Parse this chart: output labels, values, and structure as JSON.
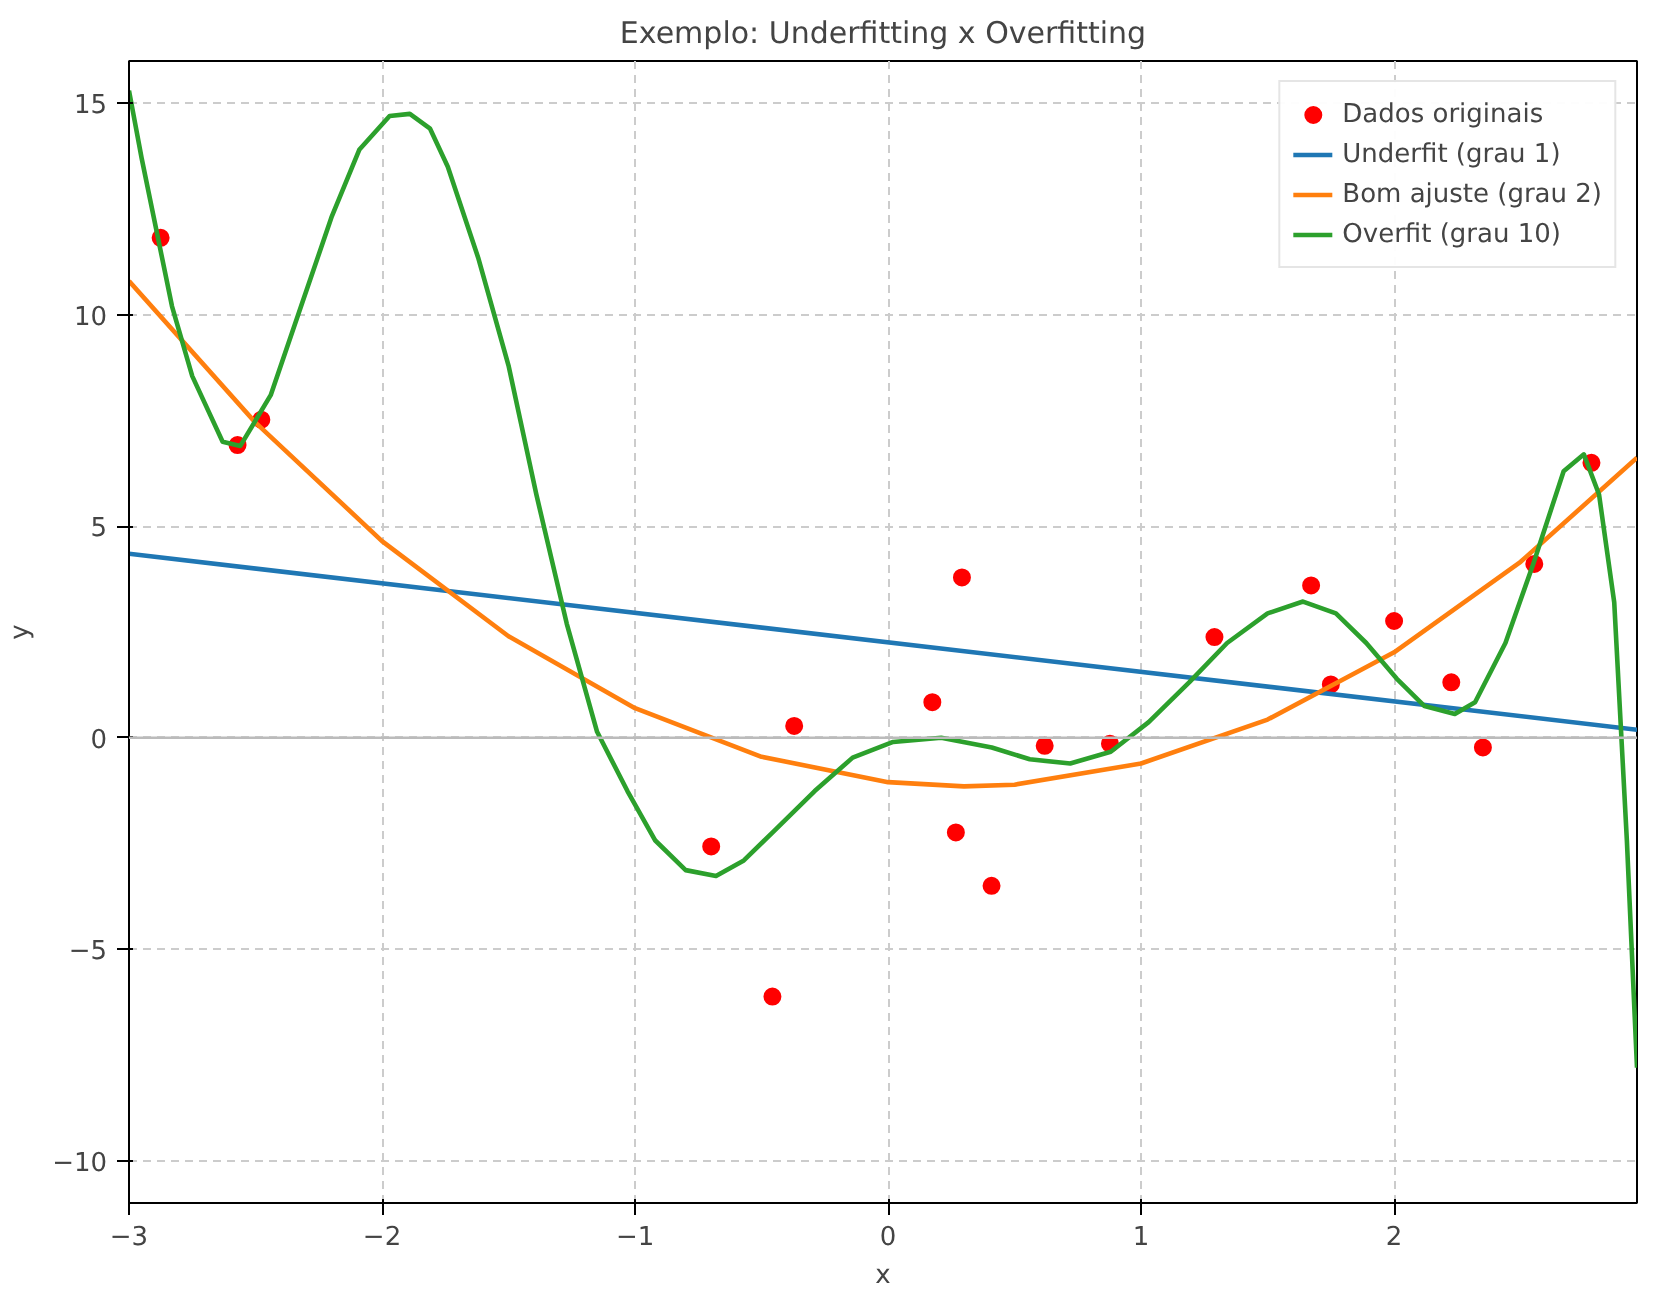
{
  "chart_data": {
    "type": "line",
    "title": "Exemplo: Underfitting x Overfitting",
    "xlabel": "x",
    "ylabel": "y",
    "xlim": [
      -3,
      2.96
    ],
    "ylim": [
      -11,
      16
    ],
    "xticks": [
      -3,
      -2,
      -1,
      0,
      1,
      2
    ],
    "yticks": [
      -10,
      -5,
      0,
      5,
      10,
      15
    ],
    "grid": true,
    "legend": "top right",
    "ref_lines": [
      {
        "axis": "y",
        "value": 0,
        "label": null,
        "color": "#bbbbbb"
      }
    ],
    "series": [
      {
        "name": "Dados originais",
        "type": "scatter",
        "marker": "circle",
        "color": "#ff0000",
        "x": [
          -2.875,
          -2.571,
          -2.477,
          -0.699,
          -0.457,
          -0.371,
          0.175,
          0.268,
          0.292,
          0.409,
          0.619,
          0.877,
          1.29,
          1.672,
          1.75,
          2.0,
          2.226,
          2.351,
          2.554,
          2.78
        ],
        "values": [
          11.82,
          6.92,
          7.52,
          -2.57,
          -6.12,
          0.28,
          0.84,
          -2.24,
          3.79,
          -3.5,
          -0.19,
          -0.14,
          2.38,
          3.6,
          1.26,
          2.76,
          1.31,
          -0.23,
          4.11,
          6.5
        ]
      },
      {
        "name": "Underfit (grau 1)",
        "color": "#1f77b4",
        "x": [
          -3,
          2.96
        ],
        "values": [
          4.35,
          0.19
        ]
      },
      {
        "name": "Bom ajuste (grau 2)",
        "color": "#ff7f0e",
        "x": [
          -3,
          -2.5,
          -2,
          -1.5,
          -1,
          -0.5,
          0,
          0.3,
          0.5,
          1,
          1.5,
          2,
          2.5,
          2.96
        ],
        "values": [
          10.8,
          7.45,
          4.65,
          2.4,
          0.7,
          -0.45,
          -1.05,
          -1.15,
          -1.11,
          -0.61,
          0.43,
          2.02,
          4.16,
          6.62
        ]
      },
      {
        "name": "Overfit (grau 10)",
        "color": "#2ca02c",
        "x": [
          -3,
          -2.95,
          -2.83,
          -2.75,
          -2.63,
          -2.56,
          -2.44,
          -2.32,
          -2.2,
          -2.09,
          -1.97,
          -1.89,
          -1.81,
          -1.74,
          -1.62,
          -1.5,
          -1.39,
          -1.27,
          -1.15,
          -1.03,
          -0.92,
          -0.8,
          -0.68,
          -0.57,
          -0.45,
          -0.29,
          -0.14,
          0.02,
          0.21,
          0.41,
          0.56,
          0.72,
          0.88,
          1.03,
          1.19,
          1.34,
          1.5,
          1.64,
          1.77,
          1.89,
          2.01,
          2.12,
          2.24,
          2.32,
          2.44,
          2.55,
          2.67,
          2.75,
          2.81,
          2.87,
          2.92,
          2.96
        ],
        "values": [
          15.3,
          13.7,
          10.2,
          8.55,
          7.0,
          6.9,
          8.1,
          10.2,
          12.3,
          13.9,
          14.7,
          14.75,
          14.4,
          13.5,
          11.35,
          8.8,
          5.75,
          2.7,
          0.14,
          -1.26,
          -2.43,
          -3.13,
          -3.27,
          -2.9,
          -2.2,
          -1.26,
          -0.47,
          -0.1,
          0.0,
          -0.23,
          -0.51,
          -0.61,
          -0.33,
          0.37,
          1.31,
          2.24,
          2.94,
          3.22,
          2.94,
          2.24,
          1.4,
          0.75,
          0.56,
          0.84,
          2.24,
          4.11,
          6.3,
          6.7,
          5.75,
          3.2,
          -2.43,
          -7.8
        ]
      }
    ]
  }
}
